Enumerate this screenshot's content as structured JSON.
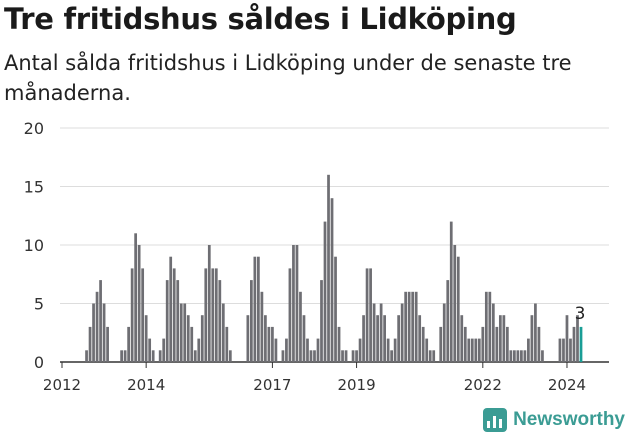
{
  "header": {
    "title": "Tre fritidshus såldes i Lidköping",
    "subtitle": "Antal sålda fritidshus i Lidköping under de senaste tre månaderna."
  },
  "brand": {
    "name": "Newsworthy",
    "color": "#3b9c94",
    "icon": "bar-chart-icon"
  },
  "chart_data": {
    "type": "bar",
    "title": "Tre fritidshus såldes i Lidköping",
    "subtitle": "Antal sålda fritidshus i Lidköping under de senaste tre månaderna.",
    "xlabel": "",
    "ylabel": "",
    "ylim": [
      0,
      20
    ],
    "yticks": [
      0,
      5,
      10,
      15,
      20
    ],
    "x_start_year": 2012,
    "xticks": [
      "2012",
      "2014",
      "2017",
      "2019",
      "2022",
      "2024"
    ],
    "grid": true,
    "bar_color": "#6e6e73",
    "highlight_color": "#1a9e96",
    "annotation": {
      "text": "3",
      "target": "last"
    },
    "values": [
      0,
      0,
      0,
      0,
      0,
      0,
      0,
      1,
      3,
      5,
      6,
      7,
      5,
      3,
      0,
      0,
      0,
      1,
      1,
      3,
      8,
      11,
      10,
      8,
      4,
      2,
      1,
      0,
      1,
      2,
      7,
      9,
      8,
      7,
      5,
      5,
      4,
      3,
      1,
      2,
      4,
      8,
      10,
      8,
      8,
      7,
      5,
      3,
      1,
      0,
      0,
      0,
      0,
      4,
      7,
      9,
      9,
      6,
      4,
      3,
      3,
      2,
      0,
      1,
      2,
      8,
      10,
      10,
      6,
      4,
      2,
      1,
      1,
      2,
      7,
      12,
      16,
      14,
      9,
      3,
      1,
      1,
      0,
      1,
      1,
      2,
      4,
      8,
      8,
      5,
      4,
      5,
      4,
      2,
      1,
      2,
      4,
      5,
      6,
      6,
      6,
      6,
      4,
      3,
      2,
      1,
      1,
      0,
      3,
      5,
      7,
      12,
      10,
      9,
      4,
      3,
      2,
      2,
      2,
      2,
      3,
      6,
      6,
      5,
      3,
      4,
      4,
      3,
      1,
      1,
      1,
      1,
      1,
      2,
      4,
      5,
      3,
      1,
      0,
      0,
      0,
      0,
      2,
      2,
      4,
      2,
      3,
      4,
      3
    ]
  }
}
